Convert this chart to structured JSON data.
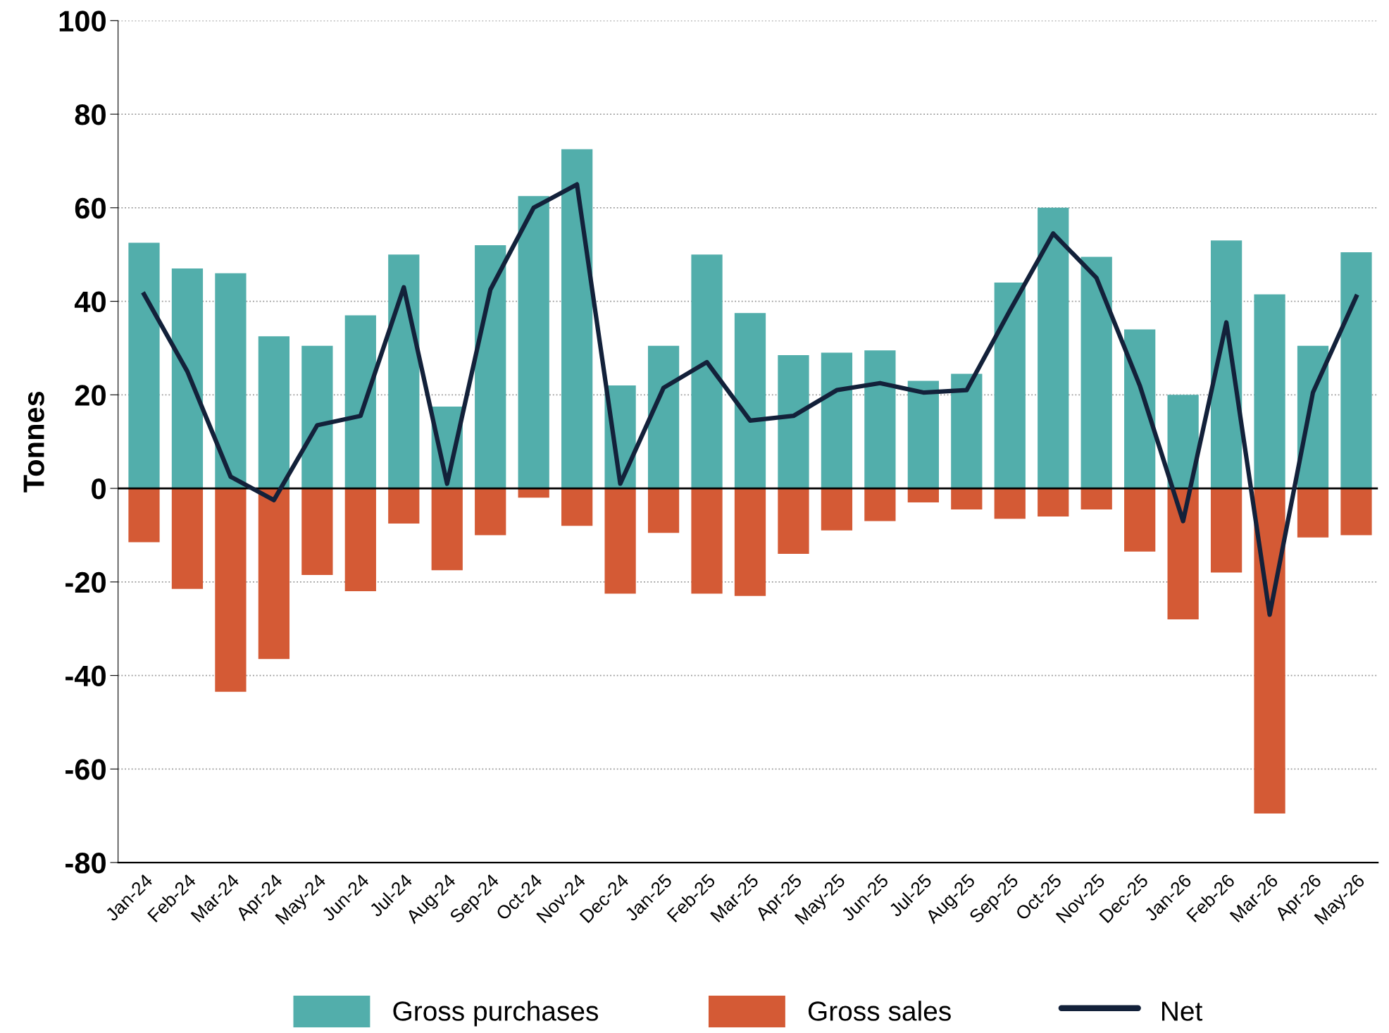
{
  "chart_data": {
    "type": "bar",
    "ylabel": "Tonnes",
    "categories": [
      "Jan-24",
      "Feb-24",
      "Mar-24",
      "Apr-24",
      "May-24",
      "Jun-24",
      "Jul-24",
      "Aug-24",
      "Sep-24",
      "Oct-24",
      "Nov-24",
      "Dec-24",
      "Jan-25",
      "Feb-25",
      "Mar-25",
      "Apr-25",
      "May-25",
      "Jun-25",
      "Jul-25",
      "Aug-25",
      "Sep-25",
      "Oct-25",
      "Nov-25",
      "Dec-25",
      "Jan-26",
      "Feb-26",
      "Mar-26",
      "Apr-26",
      "May-26"
    ],
    "series": [
      {
        "name": "Gross purchases",
        "type": "bar",
        "color": "#52aeab",
        "values": [
          52.5,
          47,
          46,
          32.5,
          30.5,
          37,
          50,
          17.5,
          52,
          62.5,
          72.5,
          22,
          30.5,
          50,
          37.5,
          28.5,
          29,
          29.5,
          23,
          24.5,
          44,
          60,
          49.5,
          34,
          20,
          53,
          41.5,
          30.5,
          50.5
        ]
      },
      {
        "name": "Gross sales",
        "type": "bar",
        "color": "#d45a35",
        "values": [
          -11.5,
          -21.5,
          -43.5,
          -36.5,
          -18.5,
          -22,
          -7.5,
          -17.5,
          -10,
          -2,
          -8,
          -22.5,
          -9.5,
          -22.5,
          -23,
          -14,
          -9,
          -7,
          -3,
          -4.5,
          -6.5,
          -6,
          -4.5,
          -13.5,
          -28,
          -18,
          -69.5,
          -10.5,
          -10
        ]
      },
      {
        "name": "Net",
        "type": "line",
        "color": "#13213a",
        "values": [
          41.5,
          25,
          2.5,
          -2.5,
          13.5,
          15.5,
          43,
          1,
          42.5,
          60,
          65,
          1,
          21.5,
          27,
          14.5,
          15.5,
          21,
          22.5,
          20.5,
          21,
          38,
          54.5,
          45,
          22,
          -7,
          35.5,
          -27,
          20.5,
          41
        ]
      }
    ],
    "ylim": [
      -80,
      100
    ],
    "yticks": [
      -80,
      -60,
      -40,
      -20,
      0,
      20,
      40,
      60,
      80,
      100
    ],
    "ref_lines": [
      {
        "axis": "y",
        "value": 0,
        "color": "#000000",
        "line_style": "solid"
      }
    ],
    "stacked": true,
    "grid": "y",
    "legend": "bottom",
    "marker": "none",
    "line_style": "solid"
  }
}
